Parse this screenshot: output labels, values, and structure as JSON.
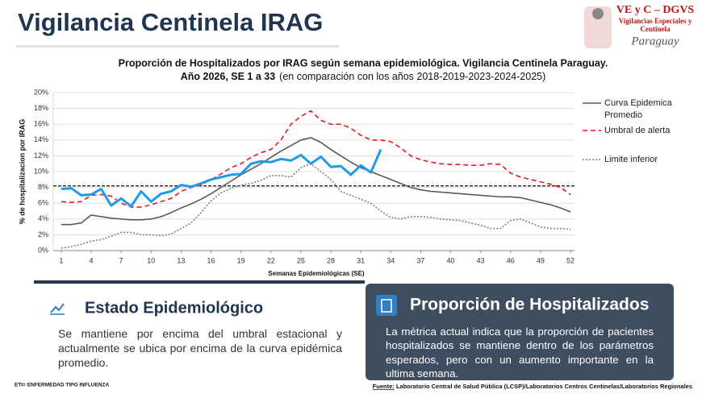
{
  "header": {
    "title": "Vigilancia Centinela IRAG"
  },
  "logo": {
    "name": "VE y C – DGVS",
    "line1": "Vigilancias Especiales y",
    "line2": "Centinela",
    "country": "Paraguay"
  },
  "chart_data": {
    "type": "line",
    "title": "Proporción de Hospitalizados por IRAG según semana epidemiológica. Vigilancia Centinela Paraguay.",
    "subtitle_bold": "Año 2026, SE 1 a 33",
    "subtitle": "(en comparación con los años 2018-2019-2023-2024-2025)",
    "y_label": "% de hospitalizacion por IRAG",
    "x_label": "Semanas Epidemiológicas (SE)",
    "x": [
      1,
      2,
      3,
      4,
      5,
      6,
      7,
      8,
      9,
      10,
      11,
      12,
      13,
      14,
      15,
      16,
      17,
      18,
      19,
      20,
      21,
      22,
      23,
      24,
      25,
      26,
      27,
      28,
      29,
      30,
      31,
      32,
      33,
      34,
      35,
      36,
      37,
      38,
      39,
      40,
      41,
      42,
      43,
      44,
      45,
      46,
      47,
      48,
      49,
      50,
      51,
      52
    ],
    "xlim": [
      0.2,
      52.4
    ],
    "xticks": [
      1,
      4,
      7,
      10,
      13,
      16,
      19,
      22,
      25,
      28,
      31,
      34,
      37,
      40,
      43,
      46,
      49,
      52
    ],
    "ylim": [
      0,
      20
    ],
    "yticks": [
      {
        "value": 0,
        "label": "0%"
      },
      {
        "value": 2,
        "label": "2%"
      },
      {
        "value": 4,
        "label": "4%"
      },
      {
        "value": 6,
        "label": "6%"
      },
      {
        "value": 8,
        "label": "8%"
      },
      {
        "value": 10,
        "label": "10%"
      },
      {
        "value": 12,
        "label": "12%"
      },
      {
        "value": 14,
        "label": "14%"
      },
      {
        "value": 16,
        "label": "16%"
      },
      {
        "value": 18,
        "label": "18%"
      },
      {
        "value": 20,
        "label": "20%"
      }
    ],
    "grid": true,
    "legend": "right",
    "series": [
      {
        "name": "Curva Epidemica Promedio",
        "color": "#595959",
        "dash": "solid",
        "values": [
          3.3,
          3.3,
          3.5,
          4.5,
          4.3,
          4.1,
          4.0,
          3.9,
          3.9,
          4.0,
          4.3,
          4.8,
          5.4,
          5.9,
          6.5,
          7.2,
          8.0,
          8.8,
          9.6,
          10.3,
          11.0,
          11.8,
          12.6,
          13.3,
          14.0,
          14.3,
          13.7,
          12.8,
          12.0,
          11.2,
          10.5,
          10.0,
          9.5,
          9.0,
          8.5,
          8.0,
          7.7,
          7.5,
          7.4,
          7.3,
          7.2,
          7.1,
          7.0,
          6.9,
          6.8,
          6.8,
          6.7,
          6.4,
          6.1,
          5.8,
          5.4,
          4.9
        ]
      },
      {
        "name": "Umbral de alerta",
        "color": "#e8191a",
        "dash": "dashed",
        "values": [
          6.2,
          6.1,
          6.2,
          7.0,
          7.1,
          6.9,
          6.0,
          5.5,
          5.5,
          5.8,
          6.2,
          6.6,
          7.5,
          8.0,
          8.3,
          9.0,
          9.7,
          10.5,
          11.0,
          11.8,
          12.4,
          12.8,
          14.0,
          16.0,
          17.0,
          17.7,
          16.5,
          16.0,
          16.0,
          15.5,
          14.6,
          14.0,
          14.0,
          13.8,
          13.0,
          12.0,
          11.5,
          11.2,
          11.0,
          10.9,
          10.9,
          10.8,
          10.8,
          11.0,
          10.9,
          9.8,
          9.3,
          9.0,
          8.7,
          8.4,
          8.0,
          7.1
        ]
      },
      {
        "name": "Limite inferior",
        "color": "#7f7f7f",
        "dash": "dotted",
        "values": [
          0.3,
          0.5,
          0.8,
          1.2,
          1.4,
          1.8,
          2.3,
          2.3,
          2.0,
          2.0,
          1.9,
          2.1,
          2.8,
          3.5,
          4.8,
          6.3,
          7.3,
          7.9,
          8.3,
          8.5,
          8.9,
          9.5,
          9.5,
          9.3,
          10.5,
          11.0,
          10.0,
          9.0,
          7.5,
          7.0,
          6.5,
          6.0,
          5.0,
          4.2,
          4.0,
          4.3,
          4.3,
          4.2,
          4.0,
          3.9,
          3.8,
          3.5,
          3.2,
          2.8,
          2.8,
          3.8,
          4.0,
          3.5,
          3.0,
          2.8,
          2.8,
          2.7
        ]
      },
      {
        "color": "#1e9be9",
        "dash": "solid",
        "values": [
          7.8,
          7.9,
          7.0,
          7.1,
          7.8,
          5.7,
          6.6,
          5.6,
          7.5,
          6.2,
          7.2,
          7.5,
          8.3,
          8.1,
          8.5,
          9.0,
          9.3,
          9.6,
          9.7,
          11.0,
          11.3,
          11.2,
          11.6,
          11.4,
          12.1,
          11.0,
          11.9,
          10.6,
          10.7,
          9.6,
          10.8,
          9.9,
          12.8,
          null,
          null,
          null,
          null,
          null,
          null,
          null,
          null,
          null,
          null,
          null,
          null,
          null,
          null,
          null,
          null,
          null,
          null,
          null
        ]
      }
    ],
    "reference_line": {
      "value": 8.2,
      "color": "#222222"
    }
  },
  "left_panel": {
    "title": "Estado Epidemiológico",
    "text": "Se mantiene por encima del umbral estacional y actualmente se ubica por encima de la curva epidémica promedio."
  },
  "right_panel": {
    "title": "Proporción de Hospitalizados",
    "text": "La métrica actual indica que la proporción de pacientes hospitalizados se mantiene dentro de los parámetros esperados, pero con un aumento importante en la ultima semana."
  },
  "footer": {
    "note": "ETI= ENFERMEDAD TIPO INFLUENZA",
    "source_label": "Fuente:",
    "source": " Laboratorio Central de Salud Pública (LCSP)/Laboratorios Centros Centinelas/Laboratorios Regionales"
  }
}
